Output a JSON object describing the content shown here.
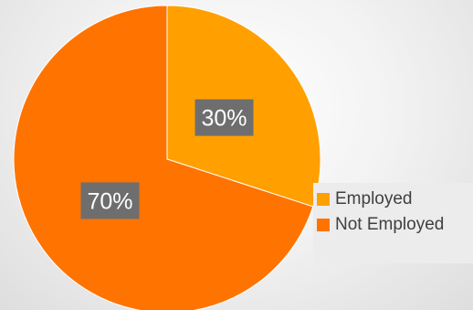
{
  "chart_data": {
    "type": "pie",
    "categories": [
      "Employed",
      "Not Employed"
    ],
    "values": [
      30,
      70
    ],
    "data_labels": [
      "30%",
      "70%"
    ],
    "colors": [
      "#ffa000",
      "#ff7300"
    ],
    "label_box_color": "#6e6e6e",
    "legend_placement": "right",
    "start_angle_deg": 0,
    "direction": "clockwise"
  }
}
